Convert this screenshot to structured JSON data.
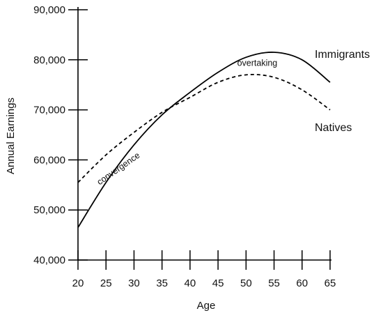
{
  "chart_data": {
    "type": "line",
    "title": "",
    "xlabel": "Age",
    "ylabel": "Annual Earnings",
    "xlim": [
      20,
      65
    ],
    "ylim": [
      40000,
      90000
    ],
    "x_ticks": [
      20,
      25,
      30,
      35,
      40,
      45,
      50,
      55,
      60,
      65
    ],
    "y_ticks": [
      40000,
      50000,
      60000,
      70000,
      80000,
      90000
    ],
    "x_tick_labels": [
      "20",
      "25",
      "30",
      "35",
      "40",
      "45",
      "50",
      "55",
      "60",
      "65"
    ],
    "y_tick_labels": [
      "40,000",
      "50,000",
      "60,000",
      "70,000",
      "80,000",
      "90,000"
    ],
    "grid": false,
    "series": [
      {
        "name": "Immigrants",
        "line_style": "solid",
        "color": "#000000",
        "x": [
          20,
          25,
          30,
          35,
          40,
          45,
          50,
          55,
          60,
          65
        ],
        "y": [
          46500,
          55500,
          63000,
          69000,
          73500,
          77500,
          80500,
          81500,
          80000,
          75500
        ]
      },
      {
        "name": "Natives",
        "line_style": "dashed",
        "color": "#000000",
        "x": [
          20,
          25,
          30,
          35,
          40,
          45,
          50,
          55,
          60,
          65
        ],
        "y": [
          55500,
          61000,
          65500,
          69500,
          72500,
          75500,
          77000,
          76500,
          74000,
          70000
        ]
      }
    ],
    "annotations": [
      {
        "text": "convergence",
        "x": 27.5,
        "y": 57800,
        "rotate": -35
      },
      {
        "text": "overtaking",
        "x": 52,
        "y": 78800,
        "rotate": 0
      }
    ]
  }
}
